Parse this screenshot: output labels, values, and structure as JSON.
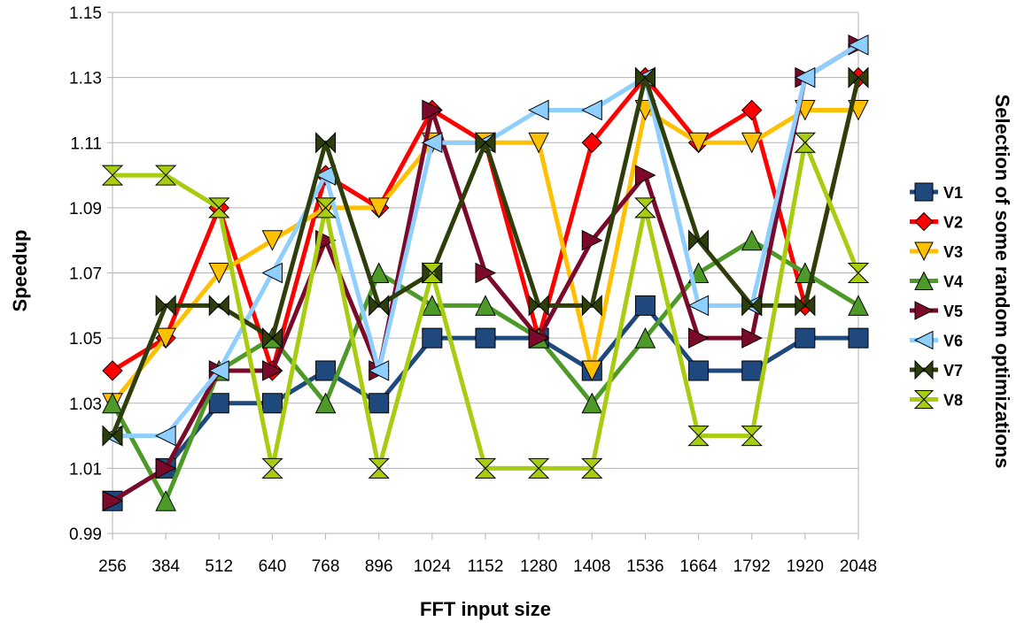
{
  "chart_data": {
    "type": "line",
    "title": "",
    "xlabel": "FFT input size",
    "ylabel": "Speedup",
    "legend_title": "Selection of some random optimizations",
    "legend_position": "right",
    "grid": true,
    "ylim": [
      0.99,
      1.15
    ],
    "yticks": [
      "0.99",
      "1.01",
      "1.03",
      "1.05",
      "1.07",
      "1.09",
      "1.11",
      "1.13",
      "1.15"
    ],
    "categories": [
      "256",
      "384",
      "512",
      "640",
      "768",
      "896",
      "1024",
      "1152",
      "1280",
      "1408",
      "1536",
      "1664",
      "1792",
      "1920",
      "2048"
    ],
    "series": [
      {
        "name": "V1",
        "color": "#1F497D",
        "marker": "square",
        "values": [
          1.0,
          1.01,
          1.03,
          1.03,
          1.04,
          1.03,
          1.05,
          1.05,
          1.05,
          1.04,
          1.06,
          1.04,
          1.04,
          1.05,
          1.05
        ]
      },
      {
        "name": "V2",
        "color": "#FF0000",
        "marker": "diamond",
        "values": [
          1.04,
          1.05,
          1.09,
          1.04,
          1.1,
          1.09,
          1.12,
          1.11,
          1.05,
          1.11,
          1.13,
          1.11,
          1.12,
          1.06,
          1.13
        ]
      },
      {
        "name": "V3",
        "color": "#FFC000",
        "marker": "triangle-down",
        "values": [
          1.03,
          1.05,
          1.07,
          1.08,
          1.09,
          1.09,
          1.11,
          1.11,
          1.11,
          1.04,
          1.12,
          1.11,
          1.11,
          1.12,
          1.12
        ]
      },
      {
        "name": "V4",
        "color": "#4E9A28",
        "marker": "triangle-up",
        "values": [
          1.03,
          1.0,
          1.04,
          1.05,
          1.03,
          1.07,
          1.06,
          1.06,
          1.05,
          1.03,
          1.05,
          1.07,
          1.08,
          1.07,
          1.06
        ]
      },
      {
        "name": "V5",
        "color": "#7B0A2A",
        "marker": "triangle-right",
        "values": [
          1.0,
          1.01,
          1.04,
          1.04,
          1.08,
          1.04,
          1.12,
          1.07,
          1.05,
          1.08,
          1.1,
          1.05,
          1.05,
          1.13,
          1.14
        ]
      },
      {
        "name": "V6",
        "color": "#8FCFFF",
        "marker": "triangle-left",
        "values": [
          1.02,
          1.02,
          1.04,
          1.07,
          1.1,
          1.04,
          1.11,
          1.11,
          1.12,
          1.12,
          1.13,
          1.06,
          1.06,
          1.13,
          1.14
        ]
      },
      {
        "name": "V7",
        "color": "#2E3E0A",
        "marker": "bowtie",
        "values": [
          1.02,
          1.06,
          1.06,
          1.05,
          1.11,
          1.06,
          1.07,
          1.11,
          1.06,
          1.06,
          1.13,
          1.08,
          1.06,
          1.06,
          1.13
        ]
      },
      {
        "name": "V8",
        "color": "#A8CC10",
        "marker": "hourglass",
        "values": [
          1.1,
          1.1,
          1.09,
          1.01,
          1.09,
          1.01,
          1.07,
          1.01,
          1.01,
          1.01,
          1.09,
          1.02,
          1.02,
          1.11,
          1.07
        ]
      }
    ]
  }
}
